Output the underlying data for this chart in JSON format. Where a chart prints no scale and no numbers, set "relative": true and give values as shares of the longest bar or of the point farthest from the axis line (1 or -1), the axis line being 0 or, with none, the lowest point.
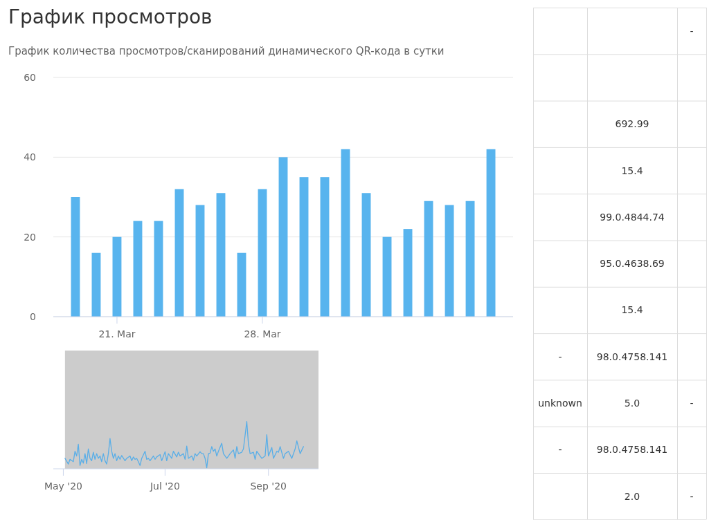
{
  "chart_data": [
    {
      "type": "bar",
      "title": "График просмотров",
      "subtitle": "График количества просмотров/сканирований динамического QR-кода в сутки",
      "categories": [
        null,
        null,
        "21. Mar",
        null,
        null,
        null,
        null,
        null,
        null,
        "28. Mar",
        null,
        null,
        null,
        null,
        null,
        null,
        null,
        null,
        null,
        null,
        null
      ],
      "values": [
        30,
        16,
        20,
        24,
        24,
        32,
        28,
        31,
        16,
        32,
        40,
        35,
        35,
        42,
        31,
        20,
        22,
        29,
        28,
        29,
        42
      ],
      "color": "#58b4ee",
      "ylim": [
        0,
        60
      ],
      "yticks": [
        0,
        20,
        40,
        60
      ],
      "grid": "y"
    },
    {
      "type": "line",
      "relative": true,
      "x": [
        "2020-05-02",
        "2020-05-04",
        "2020-05-05",
        "2020-05-07",
        "2020-05-08",
        "2020-05-09",
        "2020-05-10",
        "2020-05-11",
        "2020-05-12",
        "2020-05-13",
        "2020-05-14",
        "2020-05-15",
        "2020-05-16",
        "2020-05-17",
        "2020-05-18",
        "2020-05-19",
        "2020-05-20",
        "2020-05-21",
        "2020-05-22",
        "2020-05-23",
        "2020-05-24",
        "2020-05-25",
        "2020-05-26",
        "2020-05-27",
        "2020-05-28",
        "2020-05-29",
        "2020-05-30",
        "2020-05-31",
        "2020-06-01",
        "2020-06-02",
        "2020-06-03",
        "2020-06-04",
        "2020-06-05",
        "2020-06-07",
        "2020-06-08",
        "2020-06-10",
        "2020-06-11",
        "2020-06-12",
        "2020-06-13",
        "2020-06-14",
        "2020-06-15",
        "2020-06-16",
        "2020-06-17",
        "2020-06-19",
        "2020-06-20",
        "2020-06-21",
        "2020-06-22",
        "2020-06-24",
        "2020-06-25",
        "2020-06-26",
        "2020-06-28",
        "2020-06-29",
        "2020-07-01",
        "2020-07-02",
        "2020-07-03",
        "2020-07-05",
        "2020-07-06",
        "2020-07-08",
        "2020-07-09",
        "2020-07-10",
        "2020-07-12",
        "2020-07-13",
        "2020-07-14",
        "2020-07-15",
        "2020-07-17",
        "2020-07-18",
        "2020-07-19",
        "2020-07-20",
        "2020-07-22",
        "2020-07-23",
        "2020-07-24",
        "2020-07-25",
        "2020-07-26",
        "2020-07-27",
        "2020-07-28",
        "2020-07-29",
        "2020-07-30",
        "2020-07-31",
        "2020-08-01",
        "2020-08-02",
        "2020-08-04",
        "2020-08-05",
        "2020-08-07",
        "2020-08-08",
        "2020-08-09",
        "2020-08-11",
        "2020-08-12",
        "2020-08-13",
        "2020-08-14",
        "2020-08-16",
        "2020-08-17",
        "2020-08-19",
        "2020-08-20",
        "2020-08-21",
        "2020-08-23",
        "2020-08-24",
        "2020-08-25",
        "2020-08-27",
        "2020-08-28",
        "2020-08-30",
        "2020-08-31",
        "2020-09-01",
        "2020-09-03",
        "2020-09-04",
        "2020-09-06",
        "2020-09-07",
        "2020-09-08",
        "2020-09-10",
        "2020-09-11",
        "2020-09-13",
        "2020-09-15",
        "2020-09-17",
        "2020-09-18",
        "2020-09-20",
        "2020-09-22"
      ],
      "values": [
        0.22,
        0.1,
        0.2,
        0.15,
        0.37,
        0.27,
        0.52,
        0.07,
        0.2,
        0.12,
        0.32,
        0.11,
        0.42,
        0.22,
        0.17,
        0.35,
        0.2,
        0.32,
        0.22,
        0.27,
        0.15,
        0.32,
        0.17,
        0.1,
        0.32,
        0.64,
        0.37,
        0.22,
        0.32,
        0.17,
        0.27,
        0.2,
        0.28,
        0.17,
        0.22,
        0.27,
        0.17,
        0.25,
        0.2,
        0.22,
        0.15,
        0.07,
        0.22,
        0.37,
        0.2,
        0.22,
        0.17,
        0.27,
        0.2,
        0.25,
        0.3,
        0.17,
        0.36,
        0.17,
        0.32,
        0.22,
        0.37,
        0.25,
        0.35,
        0.27,
        0.32,
        0.2,
        0.48,
        0.22,
        0.27,
        0.18,
        0.32,
        0.27,
        0.36,
        0.32,
        0.32,
        0.22,
        0.02,
        0.32,
        0.33,
        0.47,
        0.37,
        0.42,
        0.27,
        0.37,
        0.54,
        0.32,
        0.22,
        0.27,
        0.32,
        0.4,
        0.22,
        0.47,
        0.32,
        0.35,
        0.42,
        1,
        0.52,
        0.32,
        0.35,
        0.2,
        0.37,
        0.27,
        0.22,
        0.27,
        0.72,
        0.27,
        0.45,
        0.22,
        0.37,
        0.35,
        0.47,
        0.22,
        0.32,
        0.37,
        0.22,
        0.42,
        0.59,
        0.32,
        0.47
      ],
      "color": "#58aee8",
      "xlim": [
        "2020-04-25",
        "2020-10-01"
      ],
      "xticks": [
        {
          "value": "2020-05-01",
          "label": "May '20"
        },
        {
          "value": "2020-07-01",
          "label": "Jul '20"
        },
        {
          "value": "2020-09-01",
          "label": "Sep '20"
        }
      ],
      "bands": [
        {
          "axis": "x",
          "from": "2020-05-02",
          "to": "2020-10-01",
          "color": "#cccccc"
        }
      ]
    },
    {
      "type": "other",
      "annotations": [
        "-",
        "692.99",
        "15.4",
        "99.0.4844.74",
        "95.0.4638.69",
        "15.4",
        "-",
        "98.0.4758.141",
        "unknown",
        "5.0",
        "-",
        "-",
        "98.0.4758.141",
        "2.0",
        "-"
      ]
    }
  ]
}
